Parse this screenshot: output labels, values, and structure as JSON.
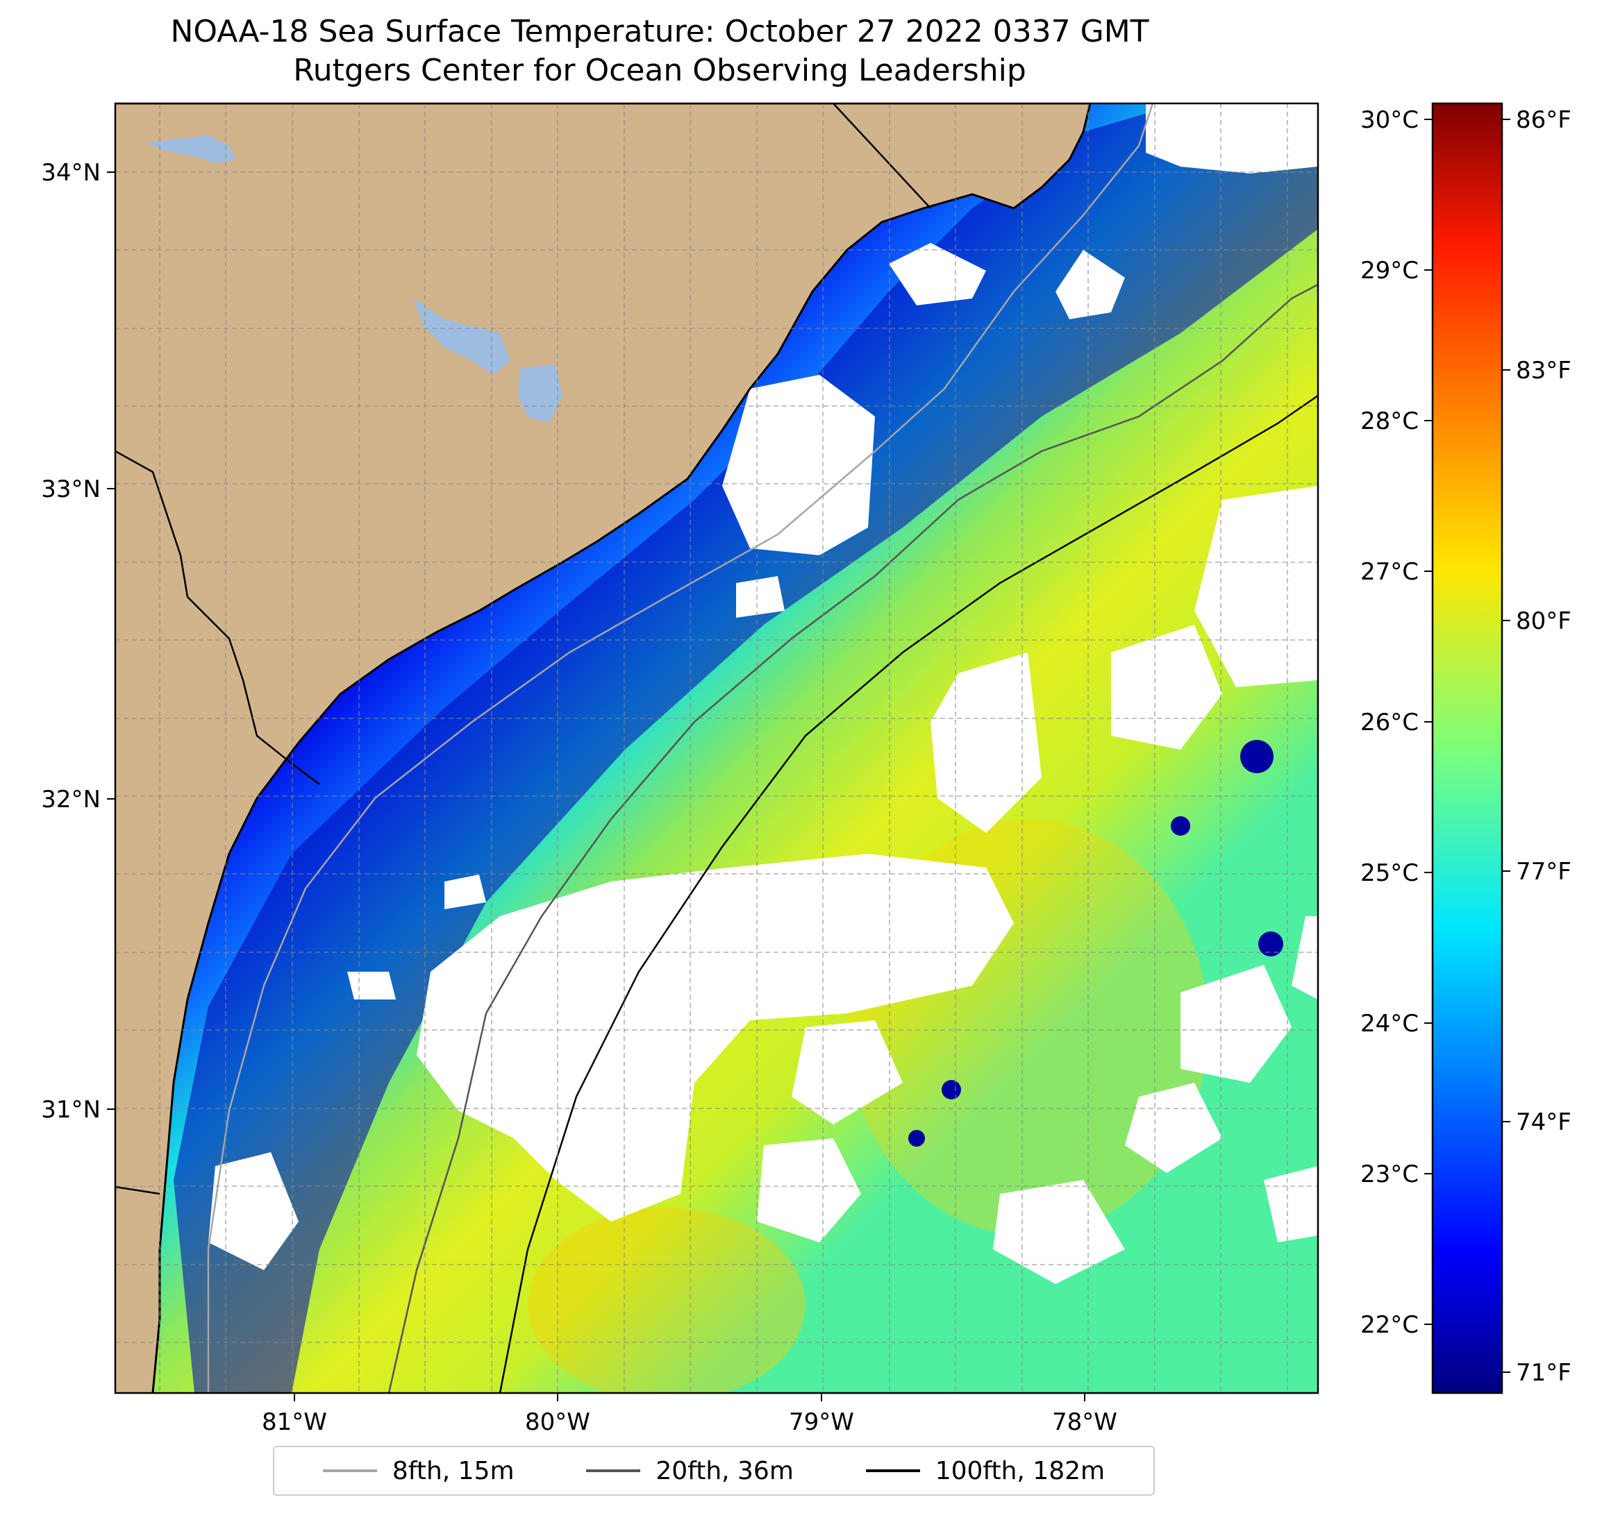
{
  "title": {
    "line1": "NOAA-18 Sea Surface Temperature: October 27 2022 0337 GMT",
    "line2": "Rutgers Center for Ocean Observing Leadership"
  },
  "map": {
    "lat_labels": [
      "34°N",
      "33°N",
      "32°N",
      "31°N"
    ],
    "lon_labels": [
      "81°W",
      "80°W",
      "79°W",
      "78°W"
    ],
    "lon_range": [
      -81.68,
      -77.12
    ],
    "lat_range": [
      30.07,
      34.22
    ],
    "land_color": "#d2b48c",
    "water_body_color": "#9fbde0",
    "missing_data_color": "#ffffff"
  },
  "colorbar": {
    "celsius_labels": [
      "30°C",
      "29°C",
      "28°C",
      "27°C",
      "26°C",
      "25°C",
      "24°C",
      "23°C",
      "22°C"
    ],
    "fahrenheit_labels": [
      "86°F",
      "83°F",
      "80°F",
      "77°F",
      "74°F",
      "71°F"
    ],
    "range_f": [
      70.5,
      86.5
    ],
    "colormap": "jet"
  },
  "legend": {
    "items": [
      {
        "label": "8fth, 15m",
        "color": "#a6a6a6"
      },
      {
        "label": "20fth, 36m",
        "color": "#555555"
      },
      {
        "label": "100fth, 182m",
        "color": "#000000"
      }
    ]
  }
}
